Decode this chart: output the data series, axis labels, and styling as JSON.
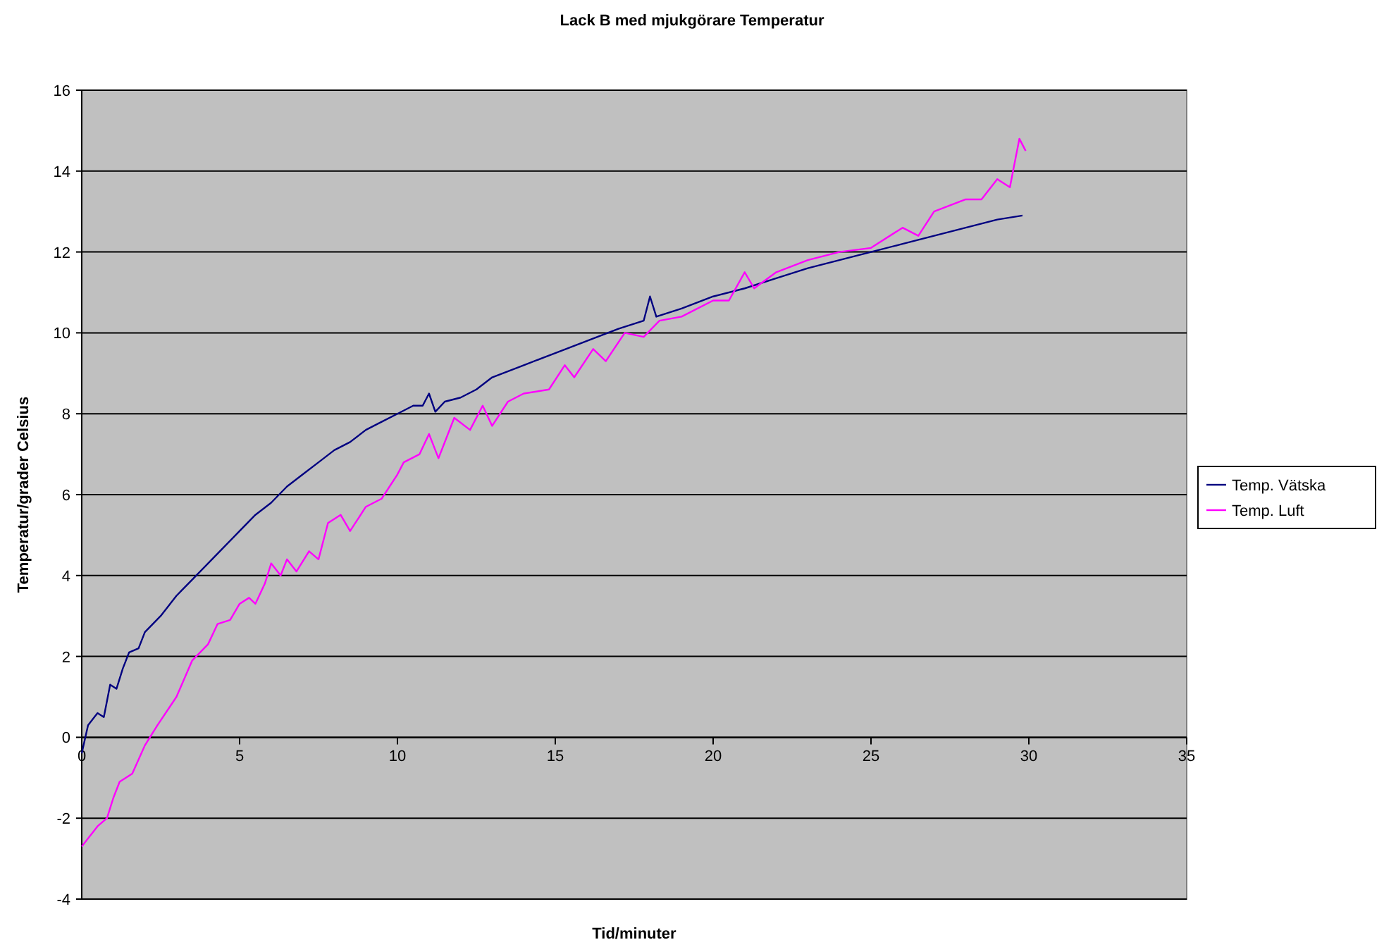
{
  "chart_data": {
    "type": "line",
    "title": "Lack B med mjukgörare Temperatur",
    "xlabel": "Tid/minuter",
    "ylabel": "Temperatur/grader Celsius",
    "xlim": [
      0,
      35
    ],
    "xticks": [
      0,
      5,
      10,
      15,
      20,
      25,
      30,
      35
    ],
    "ylim": [
      -4,
      16
    ],
    "yticks": [
      -4,
      -2,
      0,
      2,
      4,
      6,
      8,
      10,
      12,
      14,
      16
    ],
    "grid": "y",
    "legend": "right",
    "marker": "none",
    "line_style": "solid",
    "series": [
      {
        "name": "Temp. Vätska",
        "color": "#000080",
        "x": [
          0,
          0.2,
          0.5,
          0.7,
          0.9,
          1.1,
          1.3,
          1.5,
          1.8,
          2,
          2.5,
          3,
          3.5,
          4,
          4.5,
          5,
          5.5,
          6,
          6.5,
          7,
          7.5,
          8,
          8.5,
          9,
          9.5,
          10,
          10.5,
          10.8,
          11,
          11.2,
          11.5,
          12,
          12.5,
          13,
          14,
          15,
          16,
          17,
          17.8,
          18,
          18.2,
          19,
          20,
          21,
          22,
          23,
          24,
          25,
          26,
          27,
          28,
          29,
          29.8
        ],
        "values": [
          -0.4,
          0.3,
          0.6,
          0.5,
          1.3,
          1.2,
          1.7,
          2.1,
          2.2,
          2.6,
          3.0,
          3.5,
          3.9,
          4.3,
          4.7,
          5.1,
          5.5,
          5.8,
          6.2,
          6.5,
          6.8,
          7.1,
          7.3,
          7.6,
          7.8,
          8.0,
          8.2,
          8.2,
          8.5,
          8.05,
          8.3,
          8.4,
          8.6,
          8.9,
          9.2,
          9.5,
          9.8,
          10.1,
          10.3,
          10.9,
          10.4,
          10.6,
          10.9,
          11.1,
          11.35,
          11.6,
          11.8,
          12.0,
          12.2,
          12.4,
          12.6,
          12.8,
          12.9
        ]
      },
      {
        "name": "Temp. Luft",
        "color": "#ff00ff",
        "x": [
          0,
          0.5,
          0.8,
          1.0,
          1.2,
          1.6,
          2.0,
          2.4,
          3.0,
          3.5,
          4.0,
          4.3,
          4.7,
          5,
          5.3,
          5.5,
          5.8,
          6.0,
          6.3,
          6.5,
          6.8,
          7.2,
          7.5,
          7.8,
          8.2,
          8.5,
          9,
          9.5,
          10,
          10.2,
          10.7,
          11,
          11.3,
          11.8,
          12.3,
          12.7,
          13,
          13.5,
          14,
          14.8,
          15.3,
          15.6,
          16.2,
          16.6,
          17.2,
          17.8,
          18.3,
          19,
          20,
          20.5,
          21,
          21.3,
          22,
          23,
          24,
          25,
          26,
          26.5,
          27,
          28,
          28.5,
          29,
          29.4,
          29.7,
          29.9
        ],
        "values": [
          -2.7,
          -2.2,
          -2.0,
          -1.5,
          -1.1,
          -0.9,
          -0.2,
          0.3,
          1.0,
          1.9,
          2.3,
          2.8,
          2.9,
          3.3,
          3.45,
          3.3,
          3.8,
          4.3,
          4.0,
          4.4,
          4.1,
          4.6,
          4.4,
          5.3,
          5.5,
          5.1,
          5.7,
          5.9,
          6.5,
          6.8,
          7.0,
          7.5,
          6.9,
          7.9,
          7.6,
          8.2,
          7.7,
          8.3,
          8.5,
          8.6,
          9.2,
          8.9,
          9.6,
          9.3,
          10.0,
          9.9,
          10.3,
          10.4,
          10.8,
          10.8,
          11.5,
          11.1,
          11.5,
          11.8,
          12.0,
          12.1,
          12.6,
          12.4,
          13.0,
          13.3,
          13.3,
          13.8,
          13.6,
          14.8,
          14.5
        ]
      }
    ]
  }
}
